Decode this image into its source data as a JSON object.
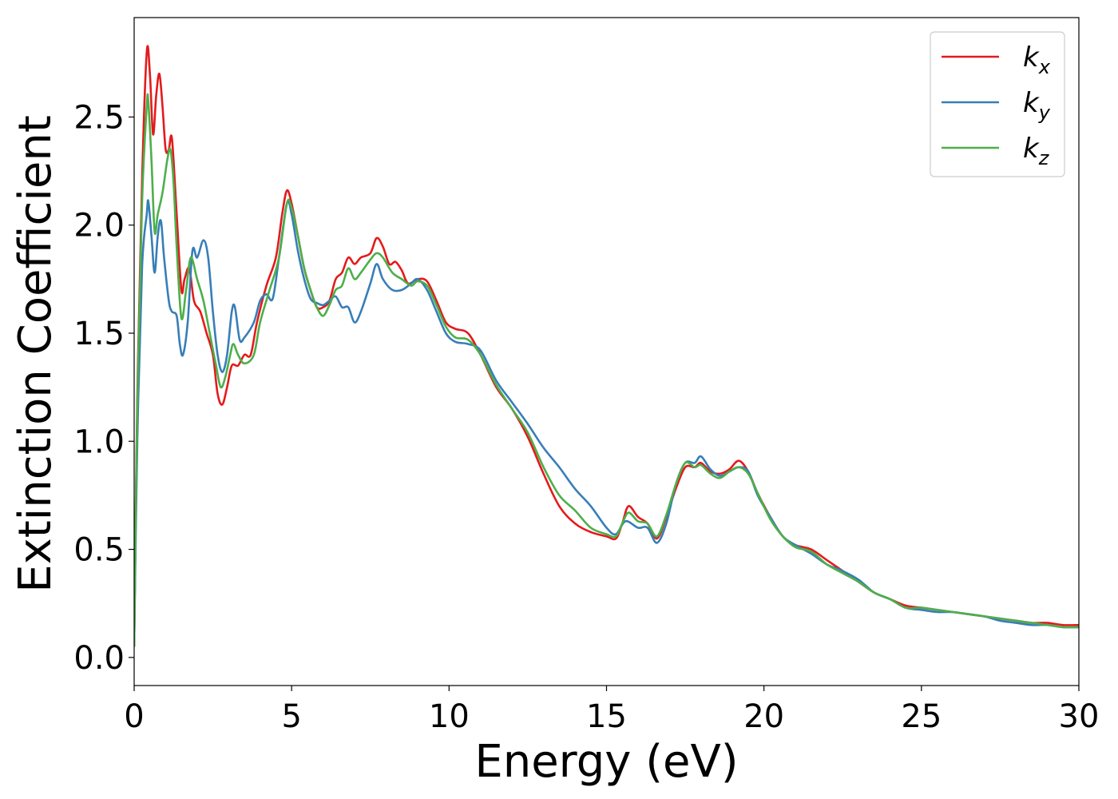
{
  "chart_data": {
    "type": "line",
    "title": "",
    "xlabel": "Energy (eV)",
    "ylabel": "Extinction Coefficient",
    "xlim": [
      0,
      30
    ],
    "ylim": [
      -0.13,
      2.96
    ],
    "xticks": [
      0,
      5,
      10,
      15,
      20,
      25,
      30
    ],
    "xtick_labels": [
      "0",
      "5",
      "10",
      "15",
      "20",
      "25",
      "30"
    ],
    "yticks": [
      0.0,
      0.5,
      1.0,
      1.5,
      2.0,
      2.5
    ],
    "ytick_labels": [
      "0.0",
      "0.5",
      "1.0",
      "1.5",
      "2.0",
      "2.5"
    ],
    "grid": false,
    "legend_position": "top-right",
    "series": [
      {
        "name": "k_x",
        "label_main": "k",
        "label_sub": "x",
        "color": "#e41a1c",
        "points": [
          [
            0,
            0.05
          ],
          [
            0.1,
            1.2
          ],
          [
            0.25,
            2.2
          ],
          [
            0.4,
            2.8
          ],
          [
            0.5,
            2.7
          ],
          [
            0.6,
            2.42
          ],
          [
            0.7,
            2.6
          ],
          [
            0.8,
            2.7
          ],
          [
            0.9,
            2.55
          ],
          [
            1.0,
            2.35
          ],
          [
            1.1,
            2.35
          ],
          [
            1.2,
            2.4
          ],
          [
            1.35,
            2.05
          ],
          [
            1.5,
            1.7
          ],
          [
            1.6,
            1.75
          ],
          [
            1.75,
            1.8
          ],
          [
            1.9,
            1.65
          ],
          [
            2.1,
            1.6
          ],
          [
            2.3,
            1.5
          ],
          [
            2.5,
            1.4
          ],
          [
            2.65,
            1.22
          ],
          [
            2.8,
            1.17
          ],
          [
            2.95,
            1.25
          ],
          [
            3.1,
            1.35
          ],
          [
            3.3,
            1.35
          ],
          [
            3.5,
            1.4
          ],
          [
            3.7,
            1.4
          ],
          [
            3.9,
            1.55
          ],
          [
            4.2,
            1.72
          ],
          [
            4.5,
            1.85
          ],
          [
            4.7,
            2.05
          ],
          [
            4.85,
            2.16
          ],
          [
            5.0,
            2.1
          ],
          [
            5.2,
            1.95
          ],
          [
            5.4,
            1.8
          ],
          [
            5.6,
            1.7
          ],
          [
            5.8,
            1.62
          ],
          [
            6.0,
            1.62
          ],
          [
            6.2,
            1.65
          ],
          [
            6.4,
            1.75
          ],
          [
            6.6,
            1.78
          ],
          [
            6.8,
            1.85
          ],
          [
            7.0,
            1.82
          ],
          [
            7.2,
            1.85
          ],
          [
            7.5,
            1.87
          ],
          [
            7.7,
            1.94
          ],
          [
            7.9,
            1.9
          ],
          [
            8.1,
            1.82
          ],
          [
            8.3,
            1.83
          ],
          [
            8.5,
            1.79
          ],
          [
            8.7,
            1.73
          ],
          [
            9.0,
            1.75
          ],
          [
            9.3,
            1.74
          ],
          [
            9.6,
            1.65
          ],
          [
            9.9,
            1.55
          ],
          [
            10.2,
            1.52
          ],
          [
            10.6,
            1.5
          ],
          [
            11.0,
            1.4
          ],
          [
            11.5,
            1.25
          ],
          [
            12.0,
            1.15
          ],
          [
            12.5,
            1.02
          ],
          [
            13.0,
            0.85
          ],
          [
            13.5,
            0.7
          ],
          [
            14.0,
            0.62
          ],
          [
            14.5,
            0.58
          ],
          [
            15.0,
            0.56
          ],
          [
            15.3,
            0.55
          ],
          [
            15.5,
            0.62
          ],
          [
            15.7,
            0.7
          ],
          [
            16.0,
            0.65
          ],
          [
            16.3,
            0.62
          ],
          [
            16.6,
            0.55
          ],
          [
            16.9,
            0.65
          ],
          [
            17.2,
            0.78
          ],
          [
            17.5,
            0.88
          ],
          [
            17.8,
            0.88
          ],
          [
            18.0,
            0.9
          ],
          [
            18.3,
            0.86
          ],
          [
            18.6,
            0.85
          ],
          [
            18.9,
            0.87
          ],
          [
            19.2,
            0.91
          ],
          [
            19.5,
            0.86
          ],
          [
            19.8,
            0.76
          ],
          [
            20.2,
            0.65
          ],
          [
            20.6,
            0.56
          ],
          [
            21.0,
            0.52
          ],
          [
            21.5,
            0.5
          ],
          [
            22.0,
            0.45
          ],
          [
            22.5,
            0.4
          ],
          [
            23.0,
            0.35
          ],
          [
            23.5,
            0.3
          ],
          [
            24.0,
            0.27
          ],
          [
            24.5,
            0.24
          ],
          [
            25.0,
            0.23
          ],
          [
            25.5,
            0.22
          ],
          [
            26.0,
            0.21
          ],
          [
            26.5,
            0.2
          ],
          [
            27.0,
            0.19
          ],
          [
            27.5,
            0.18
          ],
          [
            28.0,
            0.17
          ],
          [
            28.5,
            0.16
          ],
          [
            29.0,
            0.16
          ],
          [
            29.5,
            0.15
          ],
          [
            30.0,
            0.15
          ]
        ]
      },
      {
        "name": "k_y",
        "label_main": "k",
        "label_sub": "y",
        "color": "#377eb8",
        "points": [
          [
            0,
            0.05
          ],
          [
            0.1,
            1.0
          ],
          [
            0.25,
            1.8
          ],
          [
            0.4,
            2.05
          ],
          [
            0.45,
            2.11
          ],
          [
            0.55,
            1.95
          ],
          [
            0.65,
            1.78
          ],
          [
            0.75,
            1.95
          ],
          [
            0.85,
            2.02
          ],
          [
            0.95,
            1.85
          ],
          [
            1.1,
            1.65
          ],
          [
            1.2,
            1.6
          ],
          [
            1.35,
            1.58
          ],
          [
            1.45,
            1.45
          ],
          [
            1.55,
            1.4
          ],
          [
            1.7,
            1.55
          ],
          [
            1.85,
            1.88
          ],
          [
            2.0,
            1.85
          ],
          [
            2.2,
            1.93
          ],
          [
            2.35,
            1.85
          ],
          [
            2.5,
            1.6
          ],
          [
            2.65,
            1.4
          ],
          [
            2.8,
            1.32
          ],
          [
            2.95,
            1.4
          ],
          [
            3.1,
            1.6
          ],
          [
            3.2,
            1.62
          ],
          [
            3.35,
            1.47
          ],
          [
            3.5,
            1.48
          ],
          [
            3.8,
            1.55
          ],
          [
            4.0,
            1.65
          ],
          [
            4.2,
            1.68
          ],
          [
            4.4,
            1.66
          ],
          [
            4.6,
            1.85
          ],
          [
            4.85,
            2.1
          ],
          [
            5.0,
            2.05
          ],
          [
            5.2,
            1.88
          ],
          [
            5.4,
            1.75
          ],
          [
            5.6,
            1.66
          ],
          [
            5.8,
            1.64
          ],
          [
            6.0,
            1.63
          ],
          [
            6.2,
            1.65
          ],
          [
            6.4,
            1.67
          ],
          [
            6.6,
            1.62
          ],
          [
            6.8,
            1.62
          ],
          [
            7.0,
            1.55
          ],
          [
            7.2,
            1.6
          ],
          [
            7.5,
            1.73
          ],
          [
            7.7,
            1.82
          ],
          [
            7.9,
            1.75
          ],
          [
            8.2,
            1.7
          ],
          [
            8.5,
            1.7
          ],
          [
            8.8,
            1.73
          ],
          [
            9.0,
            1.75
          ],
          [
            9.3,
            1.7
          ],
          [
            9.6,
            1.6
          ],
          [
            9.9,
            1.5
          ],
          [
            10.2,
            1.46
          ],
          [
            10.6,
            1.45
          ],
          [
            11.0,
            1.42
          ],
          [
            11.5,
            1.28
          ],
          [
            12.0,
            1.18
          ],
          [
            12.5,
            1.08
          ],
          [
            13.0,
            0.97
          ],
          [
            13.5,
            0.88
          ],
          [
            14.0,
            0.78
          ],
          [
            14.5,
            0.7
          ],
          [
            15.0,
            0.6
          ],
          [
            15.3,
            0.57
          ],
          [
            15.6,
            0.63
          ],
          [
            16.0,
            0.6
          ],
          [
            16.3,
            0.6
          ],
          [
            16.6,
            0.53
          ],
          [
            16.9,
            0.62
          ],
          [
            17.2,
            0.8
          ],
          [
            17.5,
            0.9
          ],
          [
            17.8,
            0.9
          ],
          [
            18.0,
            0.93
          ],
          [
            18.3,
            0.87
          ],
          [
            18.6,
            0.84
          ],
          [
            18.9,
            0.86
          ],
          [
            19.2,
            0.88
          ],
          [
            19.5,
            0.86
          ],
          [
            19.8,
            0.75
          ],
          [
            20.2,
            0.65
          ],
          [
            20.6,
            0.56
          ],
          [
            21.0,
            0.52
          ],
          [
            21.5,
            0.48
          ],
          [
            22.0,
            0.43
          ],
          [
            22.5,
            0.4
          ],
          [
            23.0,
            0.36
          ],
          [
            23.5,
            0.3
          ],
          [
            24.0,
            0.27
          ],
          [
            24.5,
            0.23
          ],
          [
            25.0,
            0.22
          ],
          [
            25.5,
            0.21
          ],
          [
            26.0,
            0.21
          ],
          [
            26.5,
            0.2
          ],
          [
            27.0,
            0.19
          ],
          [
            27.5,
            0.17
          ],
          [
            28.0,
            0.16
          ],
          [
            28.5,
            0.15
          ],
          [
            29.0,
            0.15
          ],
          [
            29.5,
            0.14
          ],
          [
            30.0,
            0.14
          ]
        ]
      },
      {
        "name": "k_z",
        "label_main": "k",
        "label_sub": "z",
        "color": "#4daf4a",
        "points": [
          [
            0,
            0.05
          ],
          [
            0.1,
            1.15
          ],
          [
            0.25,
            2.1
          ],
          [
            0.4,
            2.55
          ],
          [
            0.45,
            2.57
          ],
          [
            0.55,
            2.3
          ],
          [
            0.65,
            1.97
          ],
          [
            0.75,
            2.05
          ],
          [
            0.9,
            2.15
          ],
          [
            1.05,
            2.3
          ],
          [
            1.15,
            2.35
          ],
          [
            1.25,
            2.2
          ],
          [
            1.35,
            1.9
          ],
          [
            1.5,
            1.57
          ],
          [
            1.65,
            1.7
          ],
          [
            1.8,
            1.85
          ],
          [
            2.0,
            1.75
          ],
          [
            2.2,
            1.65
          ],
          [
            2.4,
            1.5
          ],
          [
            2.6,
            1.35
          ],
          [
            2.75,
            1.25
          ],
          [
            2.9,
            1.3
          ],
          [
            3.05,
            1.4
          ],
          [
            3.15,
            1.45
          ],
          [
            3.3,
            1.4
          ],
          [
            3.5,
            1.36
          ],
          [
            3.8,
            1.4
          ],
          [
            4.0,
            1.55
          ],
          [
            4.3,
            1.7
          ],
          [
            4.6,
            1.85
          ],
          [
            4.85,
            2.1
          ],
          [
            5.0,
            2.08
          ],
          [
            5.2,
            1.95
          ],
          [
            5.4,
            1.8
          ],
          [
            5.6,
            1.7
          ],
          [
            5.8,
            1.62
          ],
          [
            6.0,
            1.58
          ],
          [
            6.2,
            1.63
          ],
          [
            6.4,
            1.7
          ],
          [
            6.6,
            1.72
          ],
          [
            6.8,
            1.8
          ],
          [
            7.0,
            1.75
          ],
          [
            7.2,
            1.78
          ],
          [
            7.5,
            1.84
          ],
          [
            7.7,
            1.87
          ],
          [
            7.9,
            1.85
          ],
          [
            8.2,
            1.78
          ],
          [
            8.5,
            1.75
          ],
          [
            8.8,
            1.72
          ],
          [
            9.0,
            1.74
          ],
          [
            9.3,
            1.72
          ],
          [
            9.6,
            1.63
          ],
          [
            9.9,
            1.53
          ],
          [
            10.2,
            1.48
          ],
          [
            10.6,
            1.47
          ],
          [
            11.0,
            1.4
          ],
          [
            11.5,
            1.26
          ],
          [
            12.0,
            1.15
          ],
          [
            12.5,
            1.04
          ],
          [
            13.0,
            0.88
          ],
          [
            13.5,
            0.75
          ],
          [
            14.0,
            0.68
          ],
          [
            14.5,
            0.6
          ],
          [
            15.0,
            0.57
          ],
          [
            15.3,
            0.56
          ],
          [
            15.5,
            0.62
          ],
          [
            15.7,
            0.67
          ],
          [
            16.0,
            0.63
          ],
          [
            16.3,
            0.62
          ],
          [
            16.6,
            0.56
          ],
          [
            16.9,
            0.66
          ],
          [
            17.2,
            0.8
          ],
          [
            17.5,
            0.9
          ],
          [
            17.8,
            0.88
          ],
          [
            18.0,
            0.89
          ],
          [
            18.3,
            0.85
          ],
          [
            18.6,
            0.83
          ],
          [
            18.9,
            0.86
          ],
          [
            19.2,
            0.88
          ],
          [
            19.5,
            0.85
          ],
          [
            19.8,
            0.76
          ],
          [
            20.2,
            0.64
          ],
          [
            20.6,
            0.56
          ],
          [
            21.0,
            0.51
          ],
          [
            21.5,
            0.49
          ],
          [
            22.0,
            0.43
          ],
          [
            22.5,
            0.39
          ],
          [
            23.0,
            0.35
          ],
          [
            23.5,
            0.3
          ],
          [
            24.0,
            0.27
          ],
          [
            24.5,
            0.23
          ],
          [
            25.0,
            0.23
          ],
          [
            25.5,
            0.22
          ],
          [
            26.0,
            0.21
          ],
          [
            26.5,
            0.2
          ],
          [
            27.0,
            0.19
          ],
          [
            27.5,
            0.18
          ],
          [
            28.0,
            0.17
          ],
          [
            28.5,
            0.16
          ],
          [
            29.0,
            0.15
          ],
          [
            29.5,
            0.14
          ],
          [
            30.0,
            0.14
          ]
        ]
      }
    ]
  }
}
